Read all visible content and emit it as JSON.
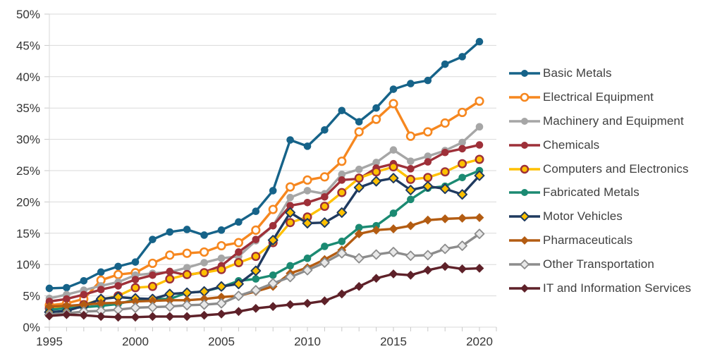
{
  "chart_data": {
    "type": "line",
    "title": "",
    "xlabel": "",
    "ylabel": "",
    "ylim": [
      0,
      50
    ],
    "y_tick_step": 5,
    "y_tick_labels": [
      "0%",
      "5%",
      "10%",
      "15%",
      "20%",
      "25%",
      "30%",
      "35%",
      "40%",
      "45%",
      "50%"
    ],
    "x": [
      1995,
      1996,
      1997,
      1998,
      1999,
      2000,
      2001,
      2002,
      2003,
      2004,
      2005,
      2006,
      2007,
      2008,
      2009,
      2010,
      2011,
      2012,
      2013,
      2014,
      2015,
      2016,
      2017,
      2018,
      2019,
      2020
    ],
    "x_ticks": [
      {
        "year": 1995,
        "label": "1995"
      },
      {
        "year": 2000,
        "label": "2000"
      },
      {
        "year": 2005,
        "label": "2005"
      },
      {
        "year": 2010,
        "label": "2010"
      },
      {
        "year": 2015,
        "label": "2015"
      },
      {
        "year": 2020,
        "label": "2020"
      }
    ],
    "grid": "horizontal",
    "legend_position": "right",
    "series": [
      {
        "name": "Basic Metals",
        "line_color": "#166389",
        "marker": "circle",
        "marker_fill": "#166389",
        "marker_stroke": "",
        "marker_stroke_width": 0,
        "values": [
          6.2,
          6.3,
          7.4,
          8.8,
          9.7,
          10.4,
          14.0,
          15.2,
          15.6,
          14.7,
          15.5,
          16.8,
          18.5,
          21.8,
          29.9,
          28.9,
          31.5,
          34.6,
          32.8,
          35.0,
          38.0,
          38.9,
          39.4,
          42.0,
          43.2,
          45.6
        ]
      },
      {
        "name": "Electrical Equipment",
        "line_color": "#F6871F",
        "marker": "circle",
        "marker_fill": "#FFFFFF",
        "marker_stroke": "#F6871F",
        "marker_stroke_width": 2.6,
        "values": [
          3.5,
          3.8,
          4.5,
          7.5,
          8.4,
          8.7,
          10.2,
          11.5,
          11.8,
          12.0,
          13.0,
          13.5,
          15.5,
          18.8,
          22.4,
          23.5,
          24.0,
          26.5,
          31.2,
          33.2,
          35.7,
          30.5,
          31.2,
          32.6,
          34.3,
          36.1
        ]
      },
      {
        "name": "Machinery and Equipment",
        "line_color": "#A6A6A6",
        "marker": "circle",
        "marker_fill": "#A6A6A6",
        "marker_stroke": "",
        "marker_stroke_width": 0,
        "values": [
          4.6,
          5.2,
          5.9,
          6.6,
          7.2,
          8.3,
          8.6,
          8.8,
          9.5,
          10.3,
          11.0,
          11.3,
          13.8,
          16.2,
          20.7,
          21.8,
          21.3,
          24.4,
          25.2,
          26.3,
          28.3,
          26.5,
          27.3,
          28.2,
          29.5,
          32.0
        ]
      },
      {
        "name": "Chemicals",
        "line_color": "#9E3039",
        "marker": "circle",
        "marker_fill": "#9E3039",
        "marker_stroke": "",
        "marker_stroke_width": 0,
        "values": [
          4.1,
          4.5,
          5.2,
          6.0,
          6.6,
          7.6,
          8.3,
          8.9,
          8.3,
          8.8,
          9.8,
          12.0,
          14.0,
          16.2,
          19.4,
          19.9,
          20.8,
          23.5,
          23.7,
          25.4,
          26.1,
          25.3,
          26.4,
          27.9,
          28.5,
          29.1
        ]
      },
      {
        "name": "Computers and Electronics",
        "line_color": "#FFC000",
        "marker": "circle",
        "marker_fill": "#FFC000",
        "marker_stroke": "#9E3039",
        "marker_stroke_width": 2.4,
        "values": [
          3.0,
          3.2,
          3.6,
          4.4,
          5.0,
          6.3,
          6.5,
          7.7,
          8.4,
          8.7,
          9.2,
          10.3,
          11.3,
          13.5,
          16.7,
          17.6,
          19.3,
          21.5,
          23.8,
          24.8,
          25.6,
          23.6,
          23.9,
          24.8,
          26.1,
          26.8
        ]
      },
      {
        "name": "Fabricated Metals",
        "line_color": "#1B8A72",
        "marker": "circle",
        "marker_fill": "#1B8A72",
        "marker_stroke": "",
        "marker_stroke_width": 0,
        "values": [
          2.8,
          3.0,
          3.2,
          3.4,
          3.7,
          4.4,
          4.5,
          4.5,
          5.5,
          5.7,
          6.4,
          7.4,
          7.7,
          8.3,
          9.8,
          11.0,
          12.9,
          13.7,
          15.9,
          16.2,
          18.2,
          20.4,
          22.2,
          22.5,
          23.9,
          25.0
        ]
      },
      {
        "name": "Motor Vehicles",
        "line_color": "#1F3A5F",
        "marker": "diamond",
        "marker_fill": "#FFC000",
        "marker_stroke": "#1F3A5F",
        "marker_stroke_width": 2,
        "values": [
          2.4,
          2.6,
          3.4,
          4.5,
          4.8,
          4.6,
          4.5,
          5.3,
          5.5,
          5.7,
          6.5,
          6.9,
          9.0,
          13.9,
          18.3,
          16.6,
          16.7,
          18.3,
          22.3,
          23.3,
          23.8,
          21.9,
          22.5,
          22.1,
          21.2,
          24.2
        ]
      },
      {
        "name": "Pharmaceuticals",
        "line_color": "#B35C12",
        "marker": "diamond",
        "marker_fill": "#B35C12",
        "marker_stroke": "",
        "marker_stroke_width": 0,
        "values": [
          3.3,
          3.4,
          3.6,
          3.8,
          3.9,
          4.1,
          4.2,
          4.3,
          4.3,
          4.5,
          4.8,
          5.0,
          5.7,
          6.5,
          8.6,
          9.5,
          10.8,
          12.3,
          14.9,
          15.5,
          15.7,
          16.2,
          17.1,
          17.3,
          17.4,
          17.5
        ]
      },
      {
        "name": "Other Transportation",
        "line_color": "#8C8C8C",
        "marker": "diamond",
        "marker_fill": "#E8E8E8",
        "marker_stroke": "#8C8C8C",
        "marker_stroke_width": 1.8,
        "values": [
          2.0,
          2.2,
          2.5,
          2.6,
          2.8,
          3.1,
          3.2,
          3.3,
          3.5,
          3.6,
          3.8,
          5.0,
          5.9,
          7.0,
          8.0,
          9.1,
          10.3,
          11.8,
          11.0,
          11.6,
          12.0,
          11.4,
          11.5,
          12.5,
          13.0,
          14.9
        ]
      },
      {
        "name": "IT and Information Services",
        "line_color": "#5E2129",
        "marker": "diamond",
        "marker_fill": "#5E2129",
        "marker_stroke": "",
        "marker_stroke_width": 0,
        "values": [
          1.8,
          2.0,
          1.9,
          1.7,
          1.6,
          1.6,
          1.7,
          1.7,
          1.7,
          1.9,
          2.1,
          2.5,
          3.0,
          3.3,
          3.6,
          3.8,
          4.2,
          5.3,
          6.5,
          7.8,
          8.5,
          8.3,
          9.1,
          9.7,
          9.3,
          9.4
        ]
      }
    ]
  },
  "colors": {
    "background": "#FFFFFF",
    "gridline": "#D9D9D9",
    "tick": "#C9C9C9",
    "axis_text": "#353535",
    "legend_text": "#3F3F3F"
  }
}
